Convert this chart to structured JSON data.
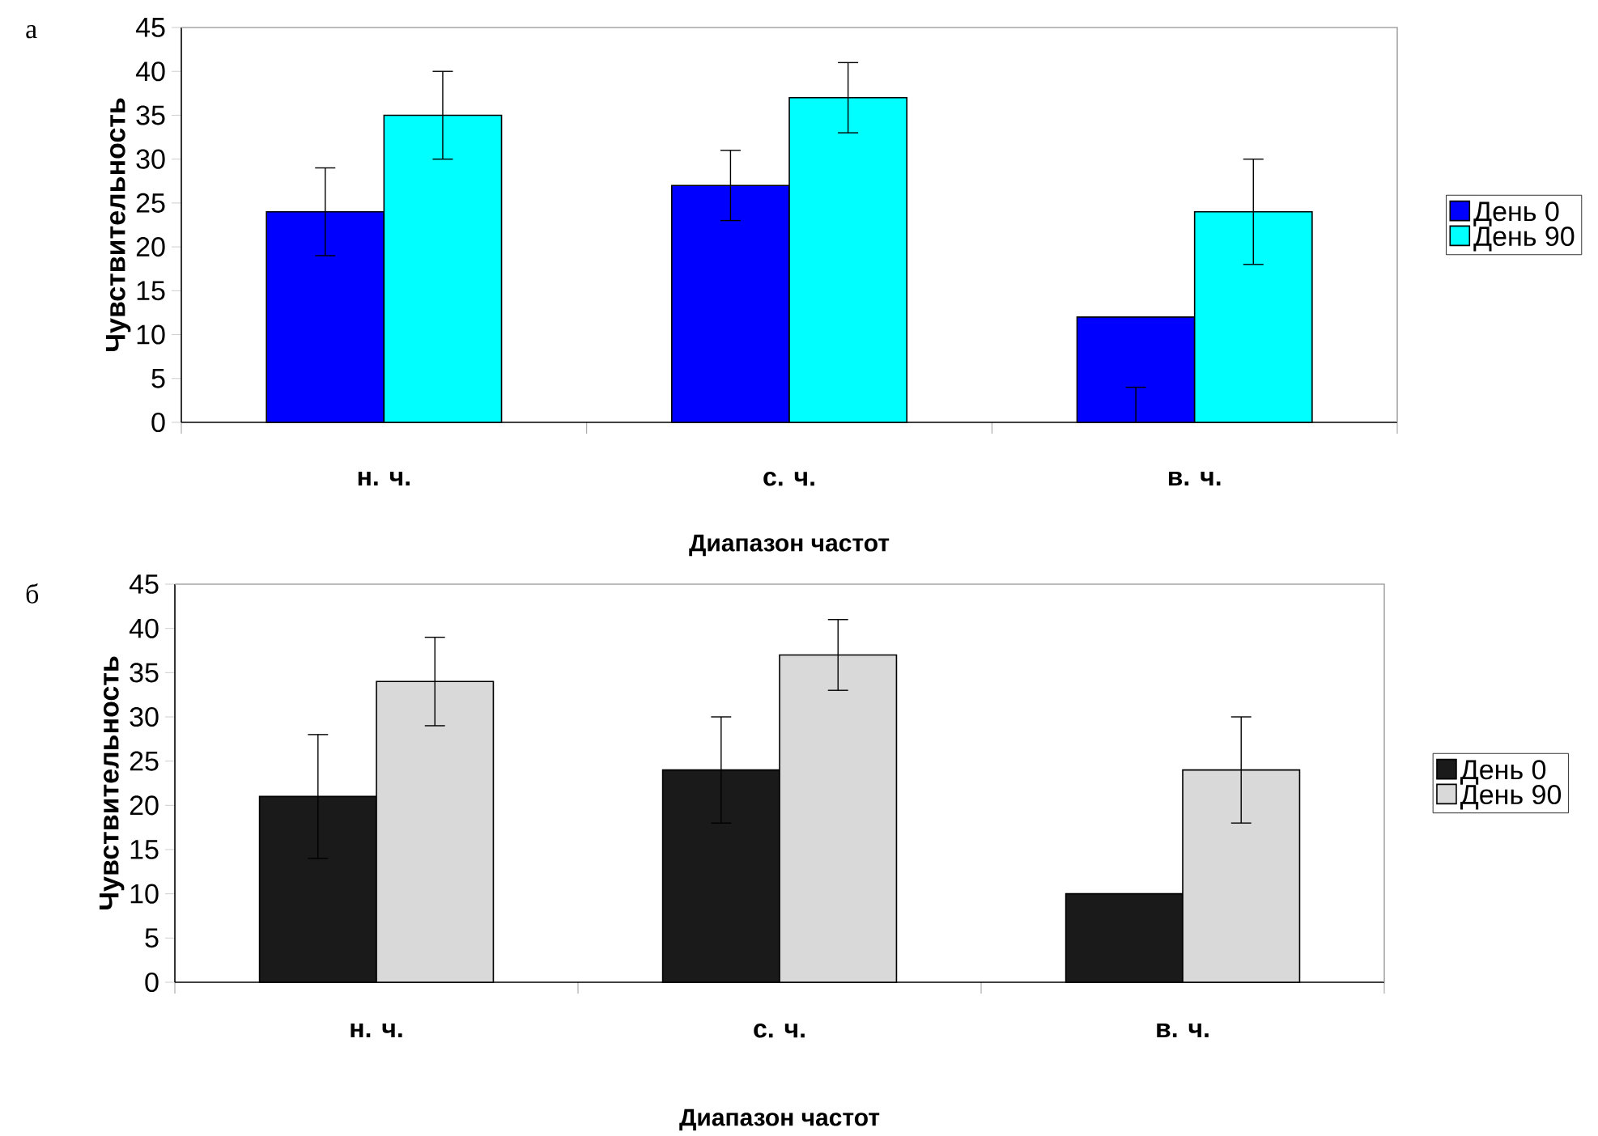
{
  "chart_data": [
    {
      "type": "bar",
      "annotations": [
        "а"
      ],
      "categories": [
        "н. ч.",
        "с. ч.",
        "в. ч."
      ],
      "xlabel": "Диапазон частот",
      "ylabel": "Чувствительность",
      "ylim": [
        0,
        45
      ],
      "yticks": [
        0,
        5,
        10,
        15,
        20,
        25,
        30,
        35,
        40,
        45
      ],
      "legend": "right",
      "series": [
        {
          "name": "День 0",
          "color": "#0000ff",
          "values": [
            24,
            27,
            12
          ],
          "errors": [
            5,
            4,
            [
              0,
              4
            ]
          ]
        },
        {
          "name": "День 90",
          "color": "#00ffff",
          "values": [
            35,
            37,
            24
          ],
          "errors": [
            5,
            4,
            6
          ]
        }
      ]
    },
    {
      "type": "bar",
      "annotations": [
        "б"
      ],
      "categories": [
        "н. ч.",
        "с. ч.",
        "в. ч."
      ],
      "xlabel": "Диапазон частот",
      "ylabel": "Чувствительность",
      "ylim": [
        0,
        45
      ],
      "yticks": [
        0,
        5,
        10,
        15,
        20,
        25,
        30,
        35,
        40,
        45
      ],
      "legend": "right",
      "series": [
        {
          "name": "День 0",
          "color": "#1a1a1a",
          "values": [
            21,
            24,
            10
          ],
          "errors": [
            7,
            6,
            null
          ]
        },
        {
          "name": "День 90",
          "color": "#d9d9d9",
          "values": [
            34,
            37,
            24
          ],
          "errors": [
            5,
            4,
            6
          ]
        }
      ]
    }
  ]
}
